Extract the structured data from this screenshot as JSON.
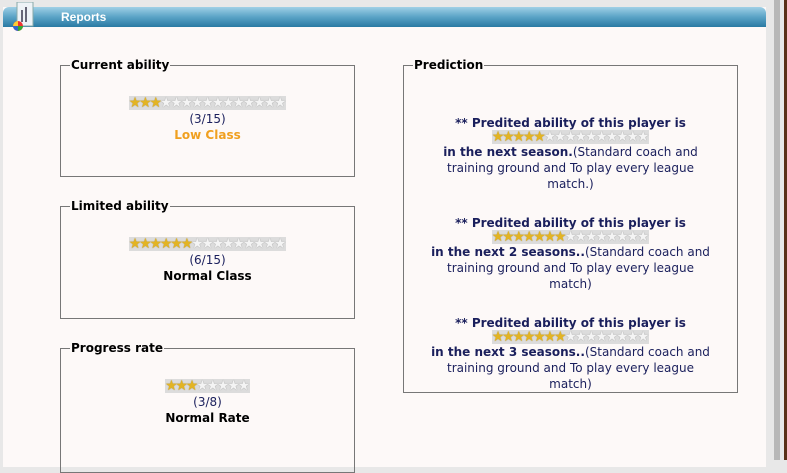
{
  "header": {
    "title": "Reports",
    "icon": "reports-chart-icon"
  },
  "current": {
    "legend": "Current ability",
    "filled": 3,
    "total": 15,
    "score": "(3/15)",
    "class": "Low Class",
    "class_color": "#f0a020"
  },
  "limited": {
    "legend": "Limited ability",
    "filled": 6,
    "total": 15,
    "score": "(6/15)",
    "class": "Normal Class"
  },
  "progress": {
    "legend": "Progress rate",
    "filled": 3,
    "total": 8,
    "score": "(3/8)",
    "class": "Normal Rate"
  },
  "prediction": {
    "legend": "Prediction",
    "items": [
      {
        "heading": "** Predited ability of this player is",
        "filled": 5,
        "total": 15,
        "period": "in the next season.",
        "note": "(Standard coach and training ground and To play every league match.)"
      },
      {
        "heading": "** Predited ability of this player is",
        "filled": 7,
        "total": 15,
        "period": "in the next 2 seasons..",
        "note": "(Standard coach and training ground and To play every league match)"
      },
      {
        "heading": "** Predited ability of this player is",
        "filled": 7,
        "total": 15,
        "period": "in the next 3 seasons..",
        "note": "(Standard coach and training ground and To play every league match)"
      }
    ]
  }
}
